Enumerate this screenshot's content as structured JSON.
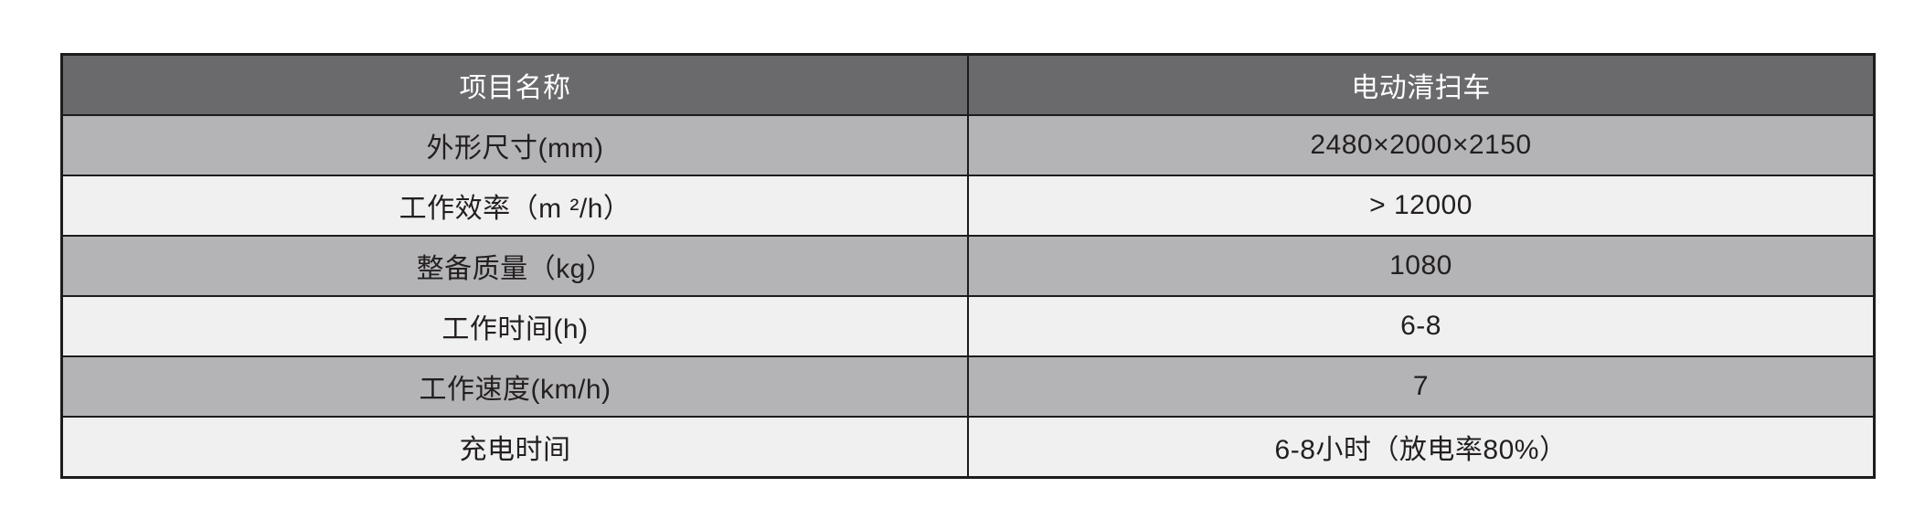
{
  "table": {
    "title_semantic": "electric-sweeper-specifications",
    "header": {
      "col1": "项目名称",
      "col2": "电动清扫车"
    },
    "rows": [
      {
        "label": "外形尺寸(mm)",
        "value": "2480×2000×2150"
      },
      {
        "label": "工作效率（m ²/h）",
        "value": "> 12000"
      },
      {
        "label": "整备质量（kg）",
        "value": "1080"
      },
      {
        "label": "工作时间(h)",
        "value": "6-8"
      },
      {
        "label": "工作速度(km/h)",
        "value": "7"
      },
      {
        "label": "充电时间",
        "value": "6-8小时（放电率80%）"
      }
    ],
    "colors": {
      "header_bg": "#6a6a6d",
      "header_text": "#ffffff",
      "row_gray_bg": "#b4b4b6",
      "row_light_bg": "#f0f0f1",
      "body_text": "#231f20",
      "border": "#1c1c1c",
      "page_bg": "#ffffff"
    }
  }
}
